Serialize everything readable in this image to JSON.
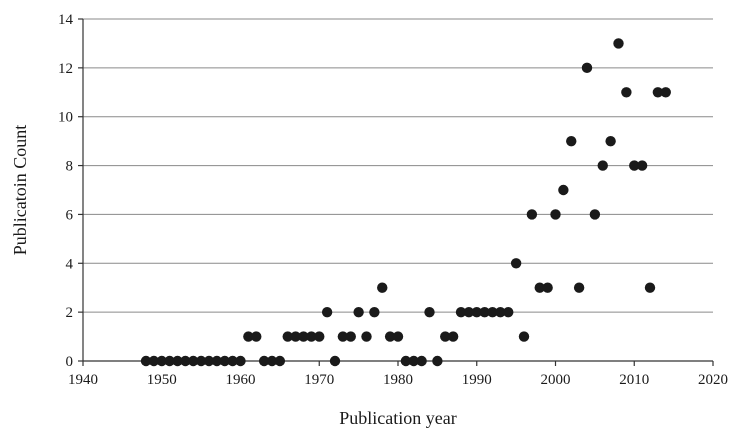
{
  "chart_data": {
    "type": "scatter",
    "title": "",
    "xlabel": "Publication year",
    "ylabel": "Publicatoin Count",
    "xlim": [
      1940,
      2020
    ],
    "ylim": [
      0,
      14
    ],
    "xticks": [
      "1940",
      "1950",
      "1960",
      "1970",
      "1980",
      "1990",
      "2000",
      "2010",
      "2020"
    ],
    "yticks": [
      "0",
      "2",
      "4",
      "6",
      "8",
      "10",
      "12",
      "14"
    ],
    "grid": "horizontal",
    "marker_color": "#1a1a1a",
    "series": [
      {
        "x": [
          1948,
          1949,
          1950,
          1951,
          1952,
          1953,
          1954,
          1955,
          1956,
          1957,
          1958,
          1959,
          1960,
          1961,
          1962,
          1963,
          1964,
          1965,
          1966,
          1967,
          1968,
          1969,
          1970,
          1971,
          1972,
          1973,
          1974,
          1975,
          1976,
          1977,
          1978,
          1979,
          1980,
          1981,
          1982,
          1983,
          1984,
          1985,
          1986,
          1987,
          1988,
          1989,
          1990,
          1991,
          1992,
          1993,
          1994,
          1995,
          1996,
          1997,
          1998,
          1999,
          2000,
          2001,
          2002,
          2003,
          2004,
          2005,
          2006,
          2007,
          2008,
          2009,
          2010,
          2011,
          2012,
          2013,
          2014
        ],
        "y": [
          0,
          0,
          0,
          0,
          0,
          0,
          0,
          0,
          0,
          0,
          0,
          0,
          0,
          1,
          1,
          0,
          0,
          0,
          1,
          1,
          1,
          1,
          1,
          2,
          0,
          1,
          1,
          2,
          1,
          2,
          3,
          1,
          1,
          0,
          0,
          0,
          2,
          0,
          1,
          1,
          2,
          2,
          2,
          2,
          2,
          2,
          2,
          4,
          1,
          6,
          3,
          3,
          6,
          7,
          9,
          3,
          12,
          6,
          8,
          9,
          13,
          11,
          8,
          8,
          3,
          11,
          11
        ]
      }
    ]
  }
}
